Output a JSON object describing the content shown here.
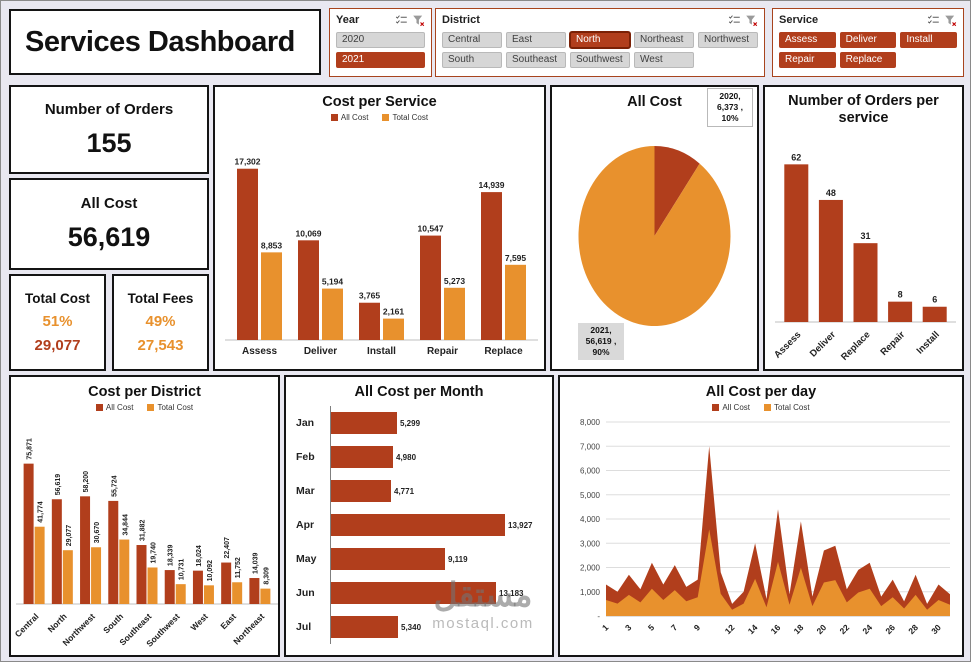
{
  "page": {
    "title": "Services Dashboard"
  },
  "colors": {
    "primary": "#B13E1C",
    "secondary": "#E8912D",
    "page_bg": "#E9E8F1",
    "unselected_bg": "#D6D6D6"
  },
  "slicers": [
    {
      "title": "Year",
      "columns": 1,
      "items": [
        {
          "label": "2020",
          "selected": false
        },
        {
          "label": "2021",
          "selected": true
        }
      ]
    },
    {
      "title": "District",
      "columns": 5,
      "items": [
        {
          "label": "Central",
          "selected": false
        },
        {
          "label": "East",
          "selected": false
        },
        {
          "label": "North",
          "selected": true,
          "focused": true
        },
        {
          "label": "Northeast",
          "selected": false
        },
        {
          "label": "Northwest",
          "selected": false
        },
        {
          "label": "South",
          "selected": false
        },
        {
          "label": "Southeast",
          "selected": false
        },
        {
          "label": "Southwest",
          "selected": false
        },
        {
          "label": "West",
          "selected": false
        }
      ]
    },
    {
      "title": "Service",
      "columns": 3,
      "items": [
        {
          "label": "Assess",
          "selected": true
        },
        {
          "label": "Deliver",
          "selected": true
        },
        {
          "label": "Install",
          "selected": true
        },
        {
          "label": "Repair",
          "selected": true
        },
        {
          "label": "Replace",
          "selected": true
        }
      ]
    }
  ],
  "kpis": {
    "orders": {
      "label": "Number of Orders",
      "value": "155"
    },
    "all_cost": {
      "label": "All Cost",
      "value": "56,619"
    },
    "total_cost": {
      "label": "Total Cost",
      "percent": "51%",
      "value": "29,077"
    },
    "total_fees": {
      "label": "Total Fees",
      "percent": "49%",
      "value": "27,543"
    }
  },
  "watermark": {
    "name": "مستقل",
    "domain": "mostaql.com"
  },
  "chart_data": [
    {
      "id": "cost_per_service",
      "type": "bar",
      "title": "Cost per Service",
      "axis_max": 20000,
      "categories": [
        "Assess",
        "Deliver",
        "Install",
        "Repair",
        "Replace"
      ],
      "series": [
        {
          "name": "All Cost",
          "color": "#B13E1C",
          "values": [
            17302,
            10069,
            3765,
            10547,
            14939
          ]
        },
        {
          "name": "Total Cost",
          "color": "#E8912D",
          "values": [
            8853,
            5194,
            2161,
            5273,
            7595
          ]
        }
      ]
    },
    {
      "id": "all_cost_pie",
      "type": "pie",
      "title": "All Cost",
      "slices": [
        {
          "name": "2020",
          "value": 6373,
          "percent": "10%",
          "color": "#B13E1C"
        },
        {
          "name": "2021",
          "value": 56619,
          "percent": "90%",
          "color": "#E8912D"
        }
      ]
    },
    {
      "id": "orders_per_service",
      "type": "bar",
      "title": "Number of Orders per service",
      "axis_max": 70,
      "categories": [
        "Assess",
        "Deliver",
        "Replace",
        "Repair",
        "Install"
      ],
      "series": [
        {
          "name": "Orders",
          "color": "#B13E1C",
          "values": [
            62,
            48,
            31,
            8,
            6
          ]
        }
      ]
    },
    {
      "id": "cost_per_district",
      "type": "bar",
      "title": "Cost per District",
      "axis_max": 80000,
      "categories": [
        "Central",
        "North",
        "Northwest",
        "South",
        "Southeast",
        "Southwest",
        "West",
        "East",
        "Northeast"
      ],
      "series": [
        {
          "name": "All Cost",
          "color": "#B13E1C",
          "values": [
            75871,
            56619,
            58200,
            55724,
            31882,
            18339,
            18024,
            22407,
            14039
          ]
        },
        {
          "name": "Total Cost",
          "color": "#E8912D",
          "values": [
            41774,
            29077,
            30670,
            34844,
            19740,
            10731,
            10092,
            11752,
            8309
          ]
        }
      ]
    },
    {
      "id": "all_cost_per_month",
      "type": "hbar",
      "title": "All Cost per Month",
      "color": "#B13E1C",
      "categories": [
        "Jan",
        "Feb",
        "Mar",
        "Apr",
        "May",
        "Jun",
        "Jul"
      ],
      "values": [
        5299,
        4980,
        4771,
        13927,
        9119,
        13183,
        5340
      ]
    },
    {
      "id": "all_cost_per_day",
      "type": "area",
      "title": "All Cost per day",
      "ylim": [
        0,
        8000
      ],
      "y_ticks": [
        0,
        1000,
        2000,
        3000,
        4000,
        5000,
        6000,
        7000,
        8000
      ],
      "y_tick_labels": [
        "-",
        "1,000",
        "2,000",
        "3,000",
        "4,000",
        "5,000",
        "6,000",
        "7,000",
        "8,000"
      ],
      "x_tick_labels": [
        "1",
        "3",
        "5",
        "7",
        "9",
        "12",
        "14",
        "16",
        "18",
        "20",
        "22",
        "24",
        "26",
        "28",
        "30"
      ],
      "x_tick_indices": [
        0,
        2,
        4,
        6,
        8,
        11,
        13,
        15,
        17,
        19,
        21,
        23,
        25,
        27,
        29
      ],
      "series": [
        {
          "name": "All Cost",
          "color": "#B13E1C",
          "values": [
            1300,
            1000,
            1700,
            1100,
            2200,
            1300,
            2100,
            1200,
            1500,
            7000,
            1800,
            500,
            1000,
            3000,
            700,
            4400,
            900,
            3900,
            800,
            2700,
            2900,
            1100,
            1900,
            2200,
            800,
            1500,
            600,
            1700,
            500,
            1300,
            900
          ]
        },
        {
          "name": "Total Cost",
          "color": "#E8912D",
          "values": [
            660,
            510,
            870,
            560,
            1120,
            660,
            1070,
            610,
            770,
            3570,
            920,
            260,
            510,
            1530,
            360,
            2240,
            460,
            1990,
            410,
            1380,
            1480,
            560,
            970,
            1120,
            410,
            770,
            310,
            870,
            260,
            660,
            460
          ]
        }
      ]
    }
  ]
}
